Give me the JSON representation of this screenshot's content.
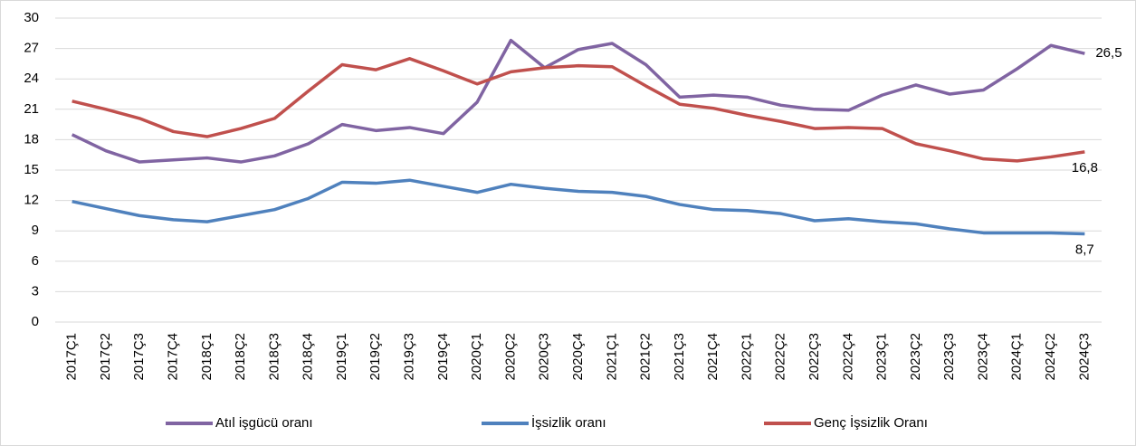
{
  "chart_data": {
    "type": "line",
    "categories": [
      "2017Ç1",
      "2017Ç2",
      "2017Ç3",
      "2017Ç4",
      "2018Ç1",
      "2018Ç2",
      "2018Ç3",
      "2018Ç4",
      "2019Ç1",
      "2019Ç2",
      "2019Ç3",
      "2019Ç4",
      "2020Ç1",
      "2020Ç2",
      "2020Ç3",
      "2020Ç4",
      "2021Ç1",
      "2021Ç2",
      "2021Ç3",
      "2021Ç4",
      "2022Ç1",
      "2022Ç2",
      "2022Ç3",
      "2022Ç4",
      "2023Ç1",
      "2023Ç2",
      "2023Ç3",
      "2023Ç4",
      "2024Ç1",
      "2024Ç2",
      "2024Ç3"
    ],
    "series": [
      {
        "name": "Atıl işgücü oranı",
        "color": "#8064a2",
        "values": [
          18.5,
          16.9,
          15.8,
          16.0,
          16.2,
          15.8,
          16.4,
          17.6,
          19.5,
          18.9,
          19.2,
          18.6,
          21.7,
          27.8,
          25.1,
          26.9,
          27.5,
          25.4,
          22.2,
          22.4,
          22.2,
          21.4,
          21.0,
          20.9,
          22.4,
          23.4,
          22.5,
          22.9,
          25.0,
          27.3,
          26.5
        ],
        "value_labels": [
          null,
          null,
          null,
          null,
          null,
          null,
          null,
          null,
          null,
          null,
          null,
          null,
          null,
          null,
          null,
          null,
          null,
          null,
          null,
          null,
          null,
          null,
          null,
          null,
          null,
          null,
          null,
          null,
          null,
          null,
          "26,5"
        ]
      },
      {
        "name": "İşsizlik oranı",
        "color": "#4f81bd",
        "values": [
          11.9,
          11.2,
          10.5,
          10.1,
          9.9,
          10.5,
          11.1,
          12.2,
          13.8,
          13.7,
          14.0,
          13.4,
          12.8,
          13.6,
          13.2,
          12.9,
          12.8,
          12.4,
          11.6,
          11.1,
          11.0,
          10.7,
          10.0,
          10.2,
          9.9,
          9.7,
          9.2,
          8.8,
          8.8,
          8.8,
          8.7
        ],
        "value_labels": [
          null,
          null,
          null,
          null,
          null,
          null,
          null,
          null,
          null,
          null,
          null,
          null,
          null,
          null,
          null,
          null,
          null,
          null,
          null,
          null,
          null,
          null,
          null,
          null,
          null,
          null,
          null,
          null,
          null,
          null,
          "8,7"
        ]
      },
      {
        "name": "Genç İşsizlik Oranı",
        "color": "#c0504d",
        "values": [
          21.8,
          21.0,
          20.1,
          18.8,
          18.3,
          19.1,
          20.1,
          22.8,
          25.4,
          24.9,
          26.0,
          24.8,
          23.5,
          24.7,
          25.1,
          25.3,
          25.2,
          23.3,
          21.5,
          21.1,
          20.4,
          19.8,
          19.1,
          19.2,
          19.1,
          17.6,
          16.9,
          16.1,
          15.9,
          16.3,
          16.8
        ],
        "value_labels": [
          null,
          null,
          null,
          null,
          null,
          null,
          null,
          null,
          null,
          null,
          null,
          null,
          null,
          null,
          null,
          null,
          null,
          null,
          null,
          null,
          null,
          null,
          null,
          null,
          null,
          null,
          null,
          null,
          null,
          null,
          "16,8"
        ]
      }
    ],
    "ylim": [
      0,
      30
    ],
    "yticks": [
      0,
      3,
      6,
      9,
      12,
      15,
      18,
      21,
      24,
      27,
      30
    ],
    "grid": true,
    "legend": "bottom"
  }
}
